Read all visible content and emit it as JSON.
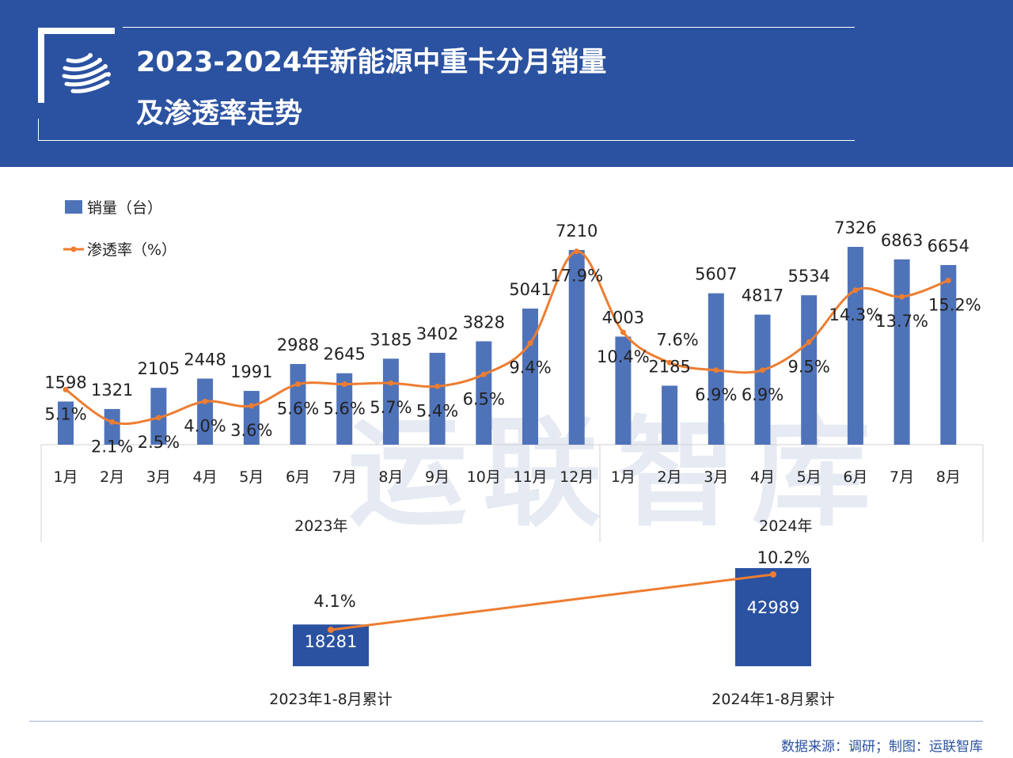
{
  "header": {
    "title_line1": "2023-2024年新能源中重卡分月销量",
    "title_line2": "及渗透率走势",
    "logo_icon": "globe-stars-logo"
  },
  "watermark": "运联智库",
  "colors": {
    "header_bg": "#2b52a1",
    "bar": "#4f73b9",
    "line": "#ed7d31",
    "summary_bar": "#2b52a1"
  },
  "chart_data": [
    {
      "type": "bar+line",
      "legend": [
        {
          "name": "销量（台）",
          "type": "bar"
        },
        {
          "name": "渗透率（%）",
          "type": "line"
        }
      ],
      "legend_position": "top-left",
      "categories": [
        "1月",
        "2月",
        "3月",
        "4月",
        "5月",
        "6月",
        "7月",
        "8月",
        "9月",
        "10月",
        "11月",
        "12月",
        "1月",
        "2月",
        "3月",
        "4月",
        "5月",
        "6月",
        "7月",
        "8月"
      ],
      "groups": [
        {
          "label": "2023年",
          "count": 12
        },
        {
          "label": "2024年",
          "count": 8
        }
      ],
      "series": [
        {
          "name": "销量（台）",
          "values": [
            1598,
            1321,
            2105,
            2448,
            1991,
            2988,
            2645,
            3185,
            3402,
            3828,
            5041,
            7210,
            4003,
            2185,
            5607,
            4817,
            5534,
            7326,
            6863,
            6654
          ]
        },
        {
          "name": "渗透率（%）",
          "values": [
            5.1,
            2.1,
            2.5,
            4.0,
            3.6,
            5.6,
            5.6,
            5.7,
            5.4,
            6.5,
            9.4,
            17.9,
            10.4,
            7.6,
            6.9,
            6.9,
            9.5,
            14.3,
            13.7,
            15.2
          ],
          "labels": [
            "5.1%",
            "2.1%",
            "2.5%",
            "4.0%",
            "3.6%",
            "5.6%",
            "5.6%",
            "5.7%",
            "5.4%",
            "6.5%",
            "9.4%",
            "17.9%",
            "10.4%",
            "7.6%",
            "6.9%",
            "6.9%",
            "9.5%",
            "14.3%",
            "13.7%",
            "15.2%"
          ]
        }
      ],
      "ylim_bar": [
        0,
        8000
      ],
      "ylim_line": [
        0,
        20
      ],
      "grid": false
    },
    {
      "type": "bar+line",
      "categories": [
        "2023年1-8月累计",
        "2024年1-8月累计"
      ],
      "series": [
        {
          "name": "销量（台）",
          "values": [
            18281,
            42989
          ]
        },
        {
          "name": "渗透率（%）",
          "values": [
            4.1,
            10.2
          ],
          "labels": [
            "4.1%",
            "10.2%"
          ]
        }
      ]
    }
  ],
  "footer": {
    "source": "数据来源：调研；制图：运联智库"
  }
}
